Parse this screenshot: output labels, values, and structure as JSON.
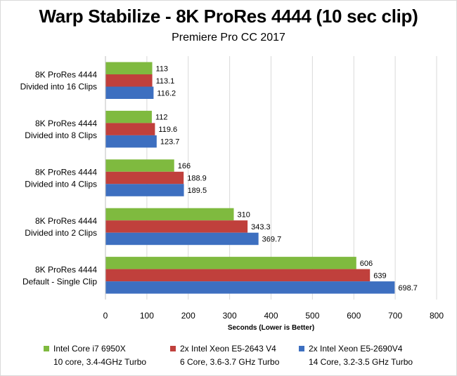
{
  "chart_data": {
    "type": "bar",
    "orientation": "horizontal",
    "title": "Warp Stabilize - 8K ProRes 4444 (10 sec clip)",
    "subtitle": "Premiere Pro CC 2017",
    "xlabel": "Seconds  (Lower is Better)",
    "ylabel": "",
    "xlim": [
      0,
      800
    ],
    "xticks": [
      0,
      100,
      200,
      300,
      400,
      500,
      600,
      700,
      800
    ],
    "grid": true,
    "legend_position": "bottom",
    "categories": [
      [
        "8K ProRes 4444",
        "Divided into 16 Clips"
      ],
      [
        "8K ProRes 4444",
        "Divided into 8 Clips"
      ],
      [
        "8K ProRes 4444",
        "Divided into 4 Clips"
      ],
      [
        "8K ProRes 4444",
        "Divided into 2 Clips"
      ],
      [
        "8K ProRes 4444",
        "Default - Single Clip"
      ]
    ],
    "series": [
      {
        "name": "Intel Core i7 6950X",
        "detail": "10 core, 3.4-4GHz Turbo",
        "color": "#7fba3f",
        "values": [
          113,
          112,
          166,
          310,
          606
        ],
        "labels": [
          "113",
          "112",
          "166",
          "310",
          "606"
        ]
      },
      {
        "name": "2x Intel Xeon E5-2643 V4",
        "detail": "6 Core, 3.6-3.7 GHz Turbo",
        "color": "#c0403c",
        "values": [
          113.1,
          119.6,
          188.9,
          343.3,
          639
        ],
        "labels": [
          "113.1",
          "119.6",
          "188.9",
          "343.3",
          "639"
        ]
      },
      {
        "name": "2x Intel Xeon E5-2690V4",
        "detail": "14 Core, 3.2-3.5 GHz Turbo",
        "color": "#3d6fc0",
        "values": [
          116.2,
          123.7,
          189.5,
          369.7,
          698.7
        ],
        "labels": [
          "116.2",
          "123.7",
          "189.5",
          "369.7",
          "698.7"
        ]
      }
    ]
  }
}
